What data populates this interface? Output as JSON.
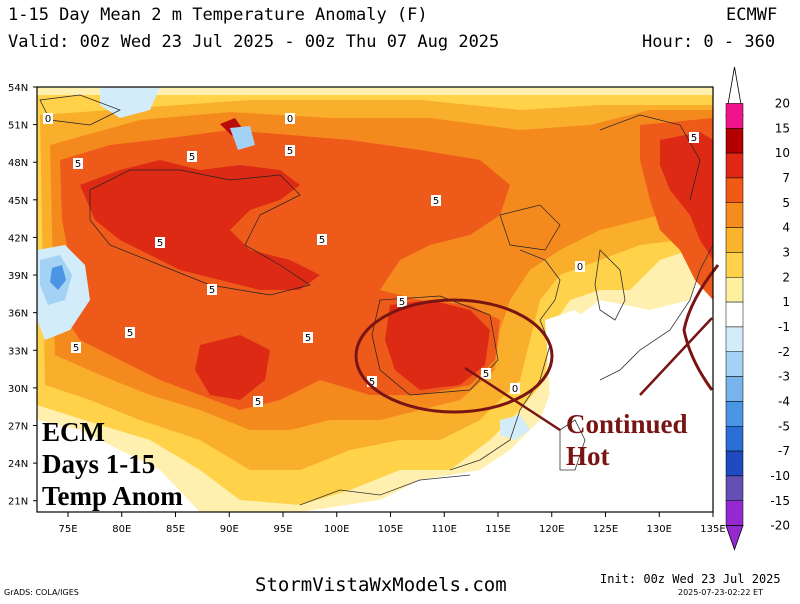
{
  "header": {
    "title": "1-15 Day Mean 2 m Temperature Anomaly (F)",
    "model": "ECMWF",
    "valid": "Valid: 00z Wed 23 Jul 2025 - 00z Thu 07 Aug 2025",
    "hour": "Hour: 0 - 360"
  },
  "map": {
    "lat_labels": [
      "54N",
      "51N",
      "48N",
      "45N",
      "42N",
      "39N",
      "36N",
      "33N",
      "30N",
      "27N",
      "24N",
      "21N"
    ],
    "lon_labels": [
      "75E",
      "80E",
      "85E",
      "90E",
      "95E",
      "100E",
      "105E",
      "110E",
      "115E",
      "120E",
      "125E",
      "130E",
      "135E"
    ],
    "isoline_labels": [
      "0",
      "0",
      "5",
      "5",
      "5",
      "5",
      "5",
      "5",
      "5",
      "5",
      "5",
      "5",
      "5",
      "5",
      "5",
      "5",
      "5",
      "0",
      "0"
    ],
    "annotation_circles": [
      "north-china-plain-circle",
      "japan-circle"
    ],
    "colors": {
      "ocean": "#ffffff",
      "c_neg2": "#d2ecfa",
      "c_neg4": "#a4d2f4",
      "c_neg7": "#4a96e4",
      "c_pos1": "#fff0b0",
      "c_pos2": "#ffd24a",
      "c_pos3": "#f9ae2c",
      "c_pos4": "#f48a1e",
      "c_pos5": "#ee5a1a",
      "c_pos7": "#dc2a14",
      "c_pos10": "#b80c0c",
      "annotation": "#7a1414"
    }
  },
  "colorbar": {
    "labels": [
      "20",
      "15",
      "10",
      "7",
      "5",
      "4",
      "3",
      "2",
      "1",
      "-1",
      "-2",
      "-3",
      "-4",
      "-5",
      "-7",
      "-10",
      "-15",
      "-20"
    ],
    "colors": [
      "#f0148c",
      "#b40000",
      "#e02814",
      "#f05a14",
      "#f58c1e",
      "#f9b42c",
      "#ffd24a",
      "#fff0a0",
      "#ffffff",
      "#d2ecfa",
      "#a4d2f4",
      "#78b4ec",
      "#4a96e4",
      "#2a6ed6",
      "#1e4cc0",
      "#6450b4",
      "#9628d2"
    ]
  },
  "overlay": {
    "left_line1": "ECM",
    "left_line2": "Days 1-15",
    "left_line3": "Temp Anom",
    "right_line1": "Continued",
    "right_line2": "Hot"
  },
  "footer": {
    "grads": "GrADS: COLA/IGES",
    "site": "StormVistaWxModels.com",
    "init": "Init: 00z Wed 23 Jul 2025",
    "timestamp": "2025-07-23-02:22 ET"
  }
}
